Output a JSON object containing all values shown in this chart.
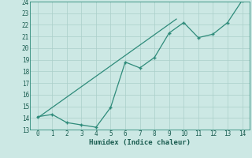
{
  "xlabel": "Humidex (Indice chaleur)",
  "x_data": [
    0,
    1,
    2,
    3,
    4,
    5,
    6,
    7,
    8,
    9,
    10,
    11,
    12,
    13,
    14
  ],
  "y_data": [
    14.1,
    14.3,
    13.6,
    13.4,
    13.2,
    14.9,
    18.8,
    18.3,
    19.2,
    21.3,
    22.2,
    20.9,
    21.2,
    22.2,
    24.1
  ],
  "trend_x": [
    0,
    9.5
  ],
  "trend_y": [
    14.0,
    22.5
  ],
  "line_color": "#2e8b7a",
  "trend_color": "#2e8b7a",
  "bg_color": "#cce8e4",
  "grid_color": "#aacfc9",
  "ylim": [
    13,
    24
  ],
  "xlim": [
    -0.5,
    14.5
  ],
  "yticks": [
    13,
    14,
    15,
    16,
    17,
    18,
    19,
    20,
    21,
    22,
    23,
    24
  ],
  "xticks": [
    0,
    1,
    2,
    3,
    4,
    5,
    6,
    7,
    8,
    9,
    10,
    11,
    12,
    13,
    14
  ],
  "tick_fontsize": 5.5,
  "xlabel_fontsize": 6.5,
  "spine_color": "#2e8b7a"
}
